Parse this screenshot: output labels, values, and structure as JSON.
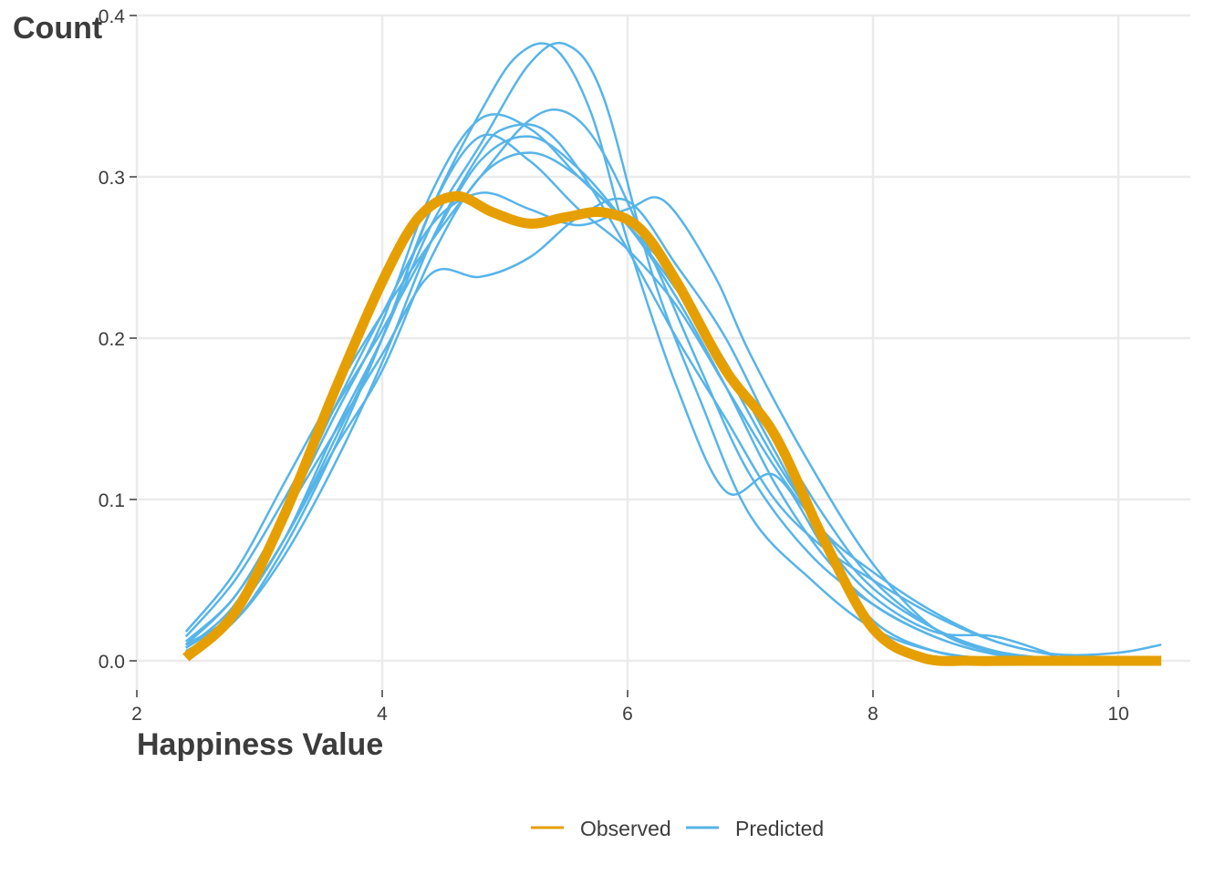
{
  "chart_data": {
    "type": "line",
    "xlabel": "Happiness Value",
    "ylabel": "Count",
    "xlim": [
      2,
      10.5
    ],
    "ylim": [
      0,
      0.4
    ],
    "x_ticks": [
      2,
      4,
      6,
      8,
      10
    ],
    "y_ticks": [
      0.0,
      0.1,
      0.2,
      0.3,
      0.4
    ],
    "x_tick_labels": [
      "2",
      "4",
      "6",
      "8",
      "10"
    ],
    "y_tick_labels": [
      "0.0",
      "0.1",
      "0.2",
      "0.3",
      "0.4"
    ],
    "grid": true,
    "legend_position": "bottom",
    "legend": [
      {
        "name": "Observed",
        "color": "#E69F00"
      },
      {
        "name": "Predicted",
        "color": "#56B4E9"
      }
    ],
    "observed": {
      "name": "Observed",
      "color": "#E69F00",
      "x": [
        2.4,
        2.8,
        3.2,
        3.6,
        4.0,
        4.3,
        4.6,
        4.9,
        5.2,
        5.5,
        5.8,
        6.1,
        6.4,
        6.8,
        7.2,
        7.6,
        8.0,
        8.4,
        8.8,
        9.2,
        10.35
      ],
      "y": [
        0.002,
        0.03,
        0.09,
        0.165,
        0.235,
        0.275,
        0.288,
        0.278,
        0.271,
        0.275,
        0.278,
        0.268,
        0.235,
        0.18,
        0.14,
        0.075,
        0.02,
        0.002,
        0.0,
        0.0,
        0.0
      ]
    },
    "predicted": {
      "name": "Predicted",
      "color": "#56B4E9",
      "draws": [
        {
          "x": [
            2.4,
            2.8,
            3.2,
            3.6,
            4.0,
            4.4,
            4.8,
            5.2,
            5.5,
            5.8,
            6.2,
            6.6,
            7.0,
            7.5,
            8.0,
            8.5,
            9.0,
            9.5
          ],
          "y": [
            0.005,
            0.03,
            0.075,
            0.14,
            0.2,
            0.27,
            0.32,
            0.37,
            0.382,
            0.35,
            0.24,
            0.16,
            0.09,
            0.05,
            0.02,
            0.006,
            0.001,
            0.0
          ]
        },
        {
          "x": [
            2.4,
            2.8,
            3.2,
            3.6,
            4.0,
            4.4,
            4.8,
            5.1,
            5.4,
            5.7,
            6.0,
            6.4,
            6.8,
            7.2,
            7.6,
            8.0,
            8.5,
            9.0
          ],
          "y": [
            0.005,
            0.025,
            0.07,
            0.13,
            0.2,
            0.28,
            0.34,
            0.375,
            0.38,
            0.34,
            0.26,
            0.17,
            0.105,
            0.115,
            0.07,
            0.025,
            0.006,
            0.001
          ]
        },
        {
          "x": [
            2.4,
            2.8,
            3.2,
            3.6,
            4.0,
            4.4,
            4.8,
            5.2,
            5.6,
            6.0,
            6.4,
            6.8,
            7.2,
            7.6,
            8.0,
            8.5,
            9.0,
            9.5
          ],
          "y": [
            0.012,
            0.04,
            0.09,
            0.15,
            0.21,
            0.29,
            0.336,
            0.33,
            0.3,
            0.27,
            0.225,
            0.17,
            0.11,
            0.065,
            0.035,
            0.015,
            0.004,
            0.001
          ]
        },
        {
          "x": [
            2.4,
            2.8,
            3.2,
            3.6,
            4.0,
            4.4,
            4.8,
            5.2,
            5.6,
            6.0,
            6.4,
            6.8,
            7.2,
            7.6,
            8.0,
            8.5,
            9.0
          ],
          "y": [
            0.01,
            0.04,
            0.09,
            0.14,
            0.19,
            0.24,
            0.238,
            0.25,
            0.275,
            0.285,
            0.245,
            0.2,
            0.14,
            0.09,
            0.05,
            0.02,
            0.005
          ]
        },
        {
          "x": [
            2.4,
            2.8,
            3.2,
            3.6,
            4.0,
            4.4,
            4.8,
            5.2,
            5.6,
            6.0,
            6.3,
            6.7,
            7.0,
            7.5,
            8.0,
            8.5,
            9.0,
            9.5
          ],
          "y": [
            0.008,
            0.035,
            0.09,
            0.155,
            0.215,
            0.27,
            0.29,
            0.28,
            0.27,
            0.28,
            0.285,
            0.24,
            0.19,
            0.12,
            0.06,
            0.02,
            0.005,
            0.001
          ]
        },
        {
          "x": [
            2.4,
            2.8,
            3.2,
            3.6,
            4.0,
            4.4,
            4.8,
            5.2,
            5.5,
            5.8,
            6.2,
            6.6,
            7.0,
            7.5,
            8.0,
            8.5,
            9.0,
            9.5
          ],
          "y": [
            0.018,
            0.055,
            0.11,
            0.165,
            0.215,
            0.26,
            0.3,
            0.335,
            0.34,
            0.315,
            0.25,
            0.18,
            0.115,
            0.065,
            0.035,
            0.015,
            0.004,
            0.001
          ]
        },
        {
          "x": [
            2.4,
            2.8,
            3.2,
            3.6,
            4.0,
            4.4,
            4.8,
            5.2,
            5.6,
            6.0,
            6.4,
            6.8,
            7.2,
            7.6,
            8.0,
            8.5,
            9.0,
            9.5
          ],
          "y": [
            0.01,
            0.03,
            0.075,
            0.135,
            0.2,
            0.28,
            0.325,
            0.31,
            0.28,
            0.255,
            0.22,
            0.17,
            0.12,
            0.08,
            0.055,
            0.03,
            0.012,
            0.003
          ]
        },
        {
          "x": [
            2.4,
            2.8,
            3.2,
            3.6,
            4.0,
            4.4,
            4.8,
            5.0,
            5.3,
            5.6,
            6.0,
            6.4,
            6.8,
            7.2,
            7.6,
            8.0,
            8.5,
            9.0,
            9.5,
            10.0,
            10.35
          ],
          "y": [
            0.006,
            0.025,
            0.065,
            0.12,
            0.185,
            0.26,
            0.315,
            0.33,
            0.33,
            0.305,
            0.255,
            0.2,
            0.15,
            0.1,
            0.07,
            0.05,
            0.028,
            0.012,
            0.004,
            0.005,
            0.01
          ]
        },
        {
          "x": [
            2.4,
            2.8,
            3.2,
            3.6,
            4.0,
            4.4,
            4.8,
            5.2,
            5.6,
            6.0,
            6.4,
            6.8,
            7.2,
            7.6,
            8.0,
            8.5,
            9.0,
            9.5
          ],
          "y": [
            0.015,
            0.05,
            0.1,
            0.155,
            0.205,
            0.26,
            0.31,
            0.325,
            0.305,
            0.27,
            0.23,
            0.185,
            0.13,
            0.075,
            0.04,
            0.018,
            0.015,
            0.003
          ]
        },
        {
          "x": [
            2.4,
            2.8,
            3.2,
            3.6,
            4.0,
            4.4,
            4.8,
            5.2,
            5.6,
            6.0,
            6.4,
            6.8,
            7.2,
            7.6,
            8.0,
            8.5,
            9.0,
            9.5
          ],
          "y": [
            0.008,
            0.03,
            0.075,
            0.13,
            0.18,
            0.25,
            0.3,
            0.315,
            0.3,
            0.27,
            0.235,
            0.18,
            0.125,
            0.08,
            0.045,
            0.02,
            0.006,
            0.001
          ]
        }
      ]
    }
  }
}
